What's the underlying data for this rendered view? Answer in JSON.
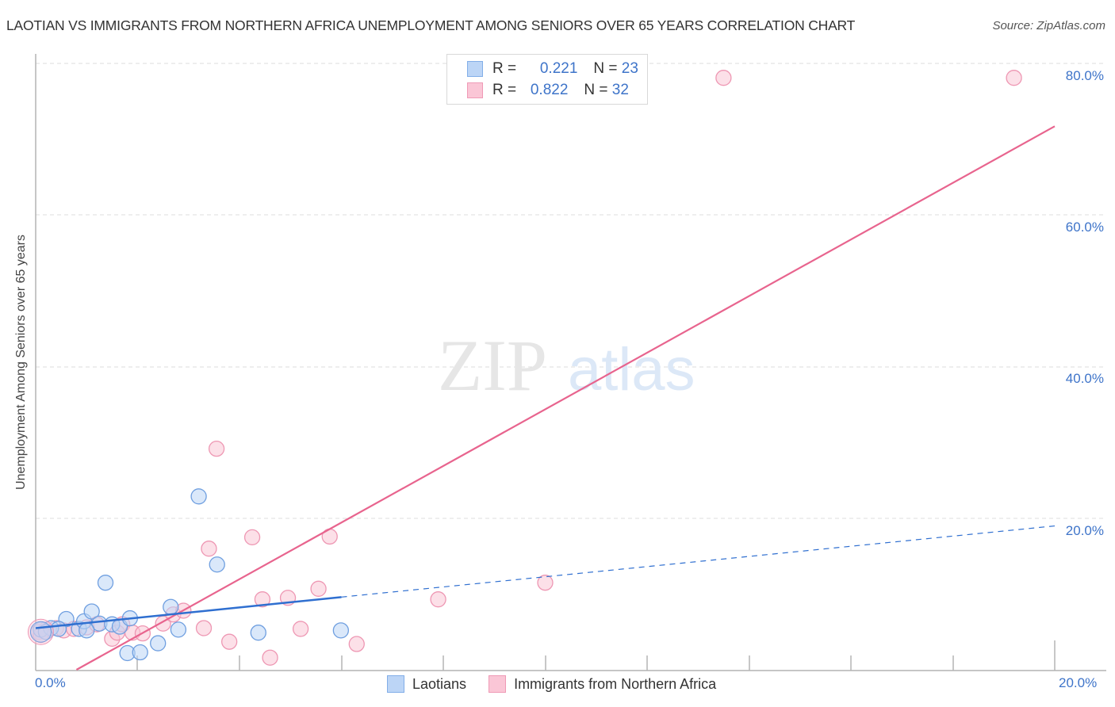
{
  "header": {
    "title": "LAOTIAN VS IMMIGRANTS FROM NORTHERN AFRICA UNEMPLOYMENT AMONG SENIORS OVER 65 YEARS CORRELATION CHART",
    "source": "Source: ZipAtlas.com"
  },
  "axes": {
    "ylabel": "Unemployment Among Seniors over 65 years",
    "y_ticks": [
      "80.0%",
      "60.0%",
      "40.0%",
      "20.0%"
    ],
    "x_ticks": [
      "0.0%",
      "20.0%"
    ]
  },
  "legend_top": {
    "rows": [
      {
        "r_label": "R =",
        "r_value": "0.221",
        "n_label": "N =",
        "n_value": "23"
      },
      {
        "r_label": "R =",
        "r_value": "0.822",
        "n_label": "N =",
        "n_value": "32"
      }
    ]
  },
  "legend_bottom": {
    "items": [
      {
        "label": "Laotians"
      },
      {
        "label": "Immigrants from Northern Africa"
      }
    ]
  },
  "watermark": {
    "zip": "ZIP",
    "atlas": "atlas"
  },
  "colors": {
    "blue_fill": "#bcd5f6",
    "blue_stroke": "#6f9fe0",
    "blue_line": "#2f6fd0",
    "pink_fill": "#fac6d6",
    "pink_stroke": "#ee97b3",
    "pink_line": "#e8648e",
    "tick_text": "#3e74c9"
  },
  "chart_data": {
    "type": "scatter",
    "title": "LAOTIAN VS IMMIGRANTS FROM NORTHERN AFRICA UNEMPLOYMENT AMONG SENIORS OVER 65 YEARS CORRELATION CHART",
    "xlabel": "",
    "ylabel": "Unemployment Among Seniors over 65 years",
    "xlim": [
      0,
      20
    ],
    "ylim": [
      0,
      80
    ],
    "x_ticks": [
      "0.0%",
      "20.0%"
    ],
    "y_ticks": [
      "20.0%",
      "40.0%",
      "60.0%",
      "80.0%"
    ],
    "grid": "horizontal dashed",
    "legend_position": "top-center and bottom",
    "series": [
      {
        "name": "Laotians",
        "color": "#6f9fe0",
        "R": 0.221,
        "N": 23,
        "points": [
          [
            0.1,
            5.3
          ],
          [
            0.3,
            5.5
          ],
          [
            0.6,
            6.7
          ],
          [
            0.85,
            5.4
          ],
          [
            0.95,
            6.4
          ],
          [
            1.1,
            7.7
          ],
          [
            1.25,
            6.1
          ],
          [
            1.37,
            11.5
          ],
          [
            1.5,
            6.0
          ],
          [
            1.65,
            5.7
          ],
          [
            1.8,
            2.2
          ],
          [
            1.85,
            6.8
          ],
          [
            2.05,
            2.3
          ],
          [
            2.4,
            3.5
          ],
          [
            2.65,
            8.3
          ],
          [
            2.8,
            5.3
          ],
          [
            3.2,
            22.9
          ],
          [
            3.56,
            13.9
          ],
          [
            4.37,
            4.9
          ],
          [
            5.99,
            5.2
          ],
          [
            0.2,
            5.0
          ],
          [
            1.0,
            5.2
          ],
          [
            0.45,
            5.4
          ]
        ],
        "trend": {
          "x": [
            0,
            6.0
          ],
          "y": [
            5.5,
            9.6
          ],
          "extended_dashed_to": [
            20,
            19.0
          ]
        }
      },
      {
        "name": "Immigrants from Northern Africa",
        "color": "#ee97b3",
        "R": 0.822,
        "N": 32,
        "points": [
          [
            0.05,
            5.0
          ],
          [
            0.2,
            5.3
          ],
          [
            0.4,
            5.5
          ],
          [
            0.55,
            5.2
          ],
          [
            0.75,
            5.4
          ],
          [
            1.0,
            5.6
          ],
          [
            1.2,
            6.0
          ],
          [
            1.5,
            4.1
          ],
          [
            1.6,
            4.9
          ],
          [
            1.7,
            6.0
          ],
          [
            1.9,
            4.9
          ],
          [
            2.1,
            4.8
          ],
          [
            2.5,
            6.1
          ],
          [
            2.7,
            7.3
          ],
          [
            2.9,
            7.8
          ],
          [
            3.3,
            5.5
          ],
          [
            3.4,
            16.0
          ],
          [
            3.55,
            29.2
          ],
          [
            3.8,
            3.7
          ],
          [
            4.25,
            17.5
          ],
          [
            4.45,
            9.3
          ],
          [
            4.6,
            1.6
          ],
          [
            4.95,
            9.5
          ],
          [
            5.2,
            5.4
          ],
          [
            5.55,
            10.7
          ],
          [
            5.77,
            17.6
          ],
          [
            6.3,
            3.4
          ],
          [
            7.9,
            9.3
          ],
          [
            10.0,
            11.5
          ],
          [
            13.5,
            78.2
          ],
          [
            19.2,
            78.2
          ],
          [
            0.1,
            4.6
          ]
        ],
        "trend": {
          "x": [
            0.8,
            20
          ],
          "y": [
            0,
            71.8
          ]
        }
      }
    ]
  }
}
